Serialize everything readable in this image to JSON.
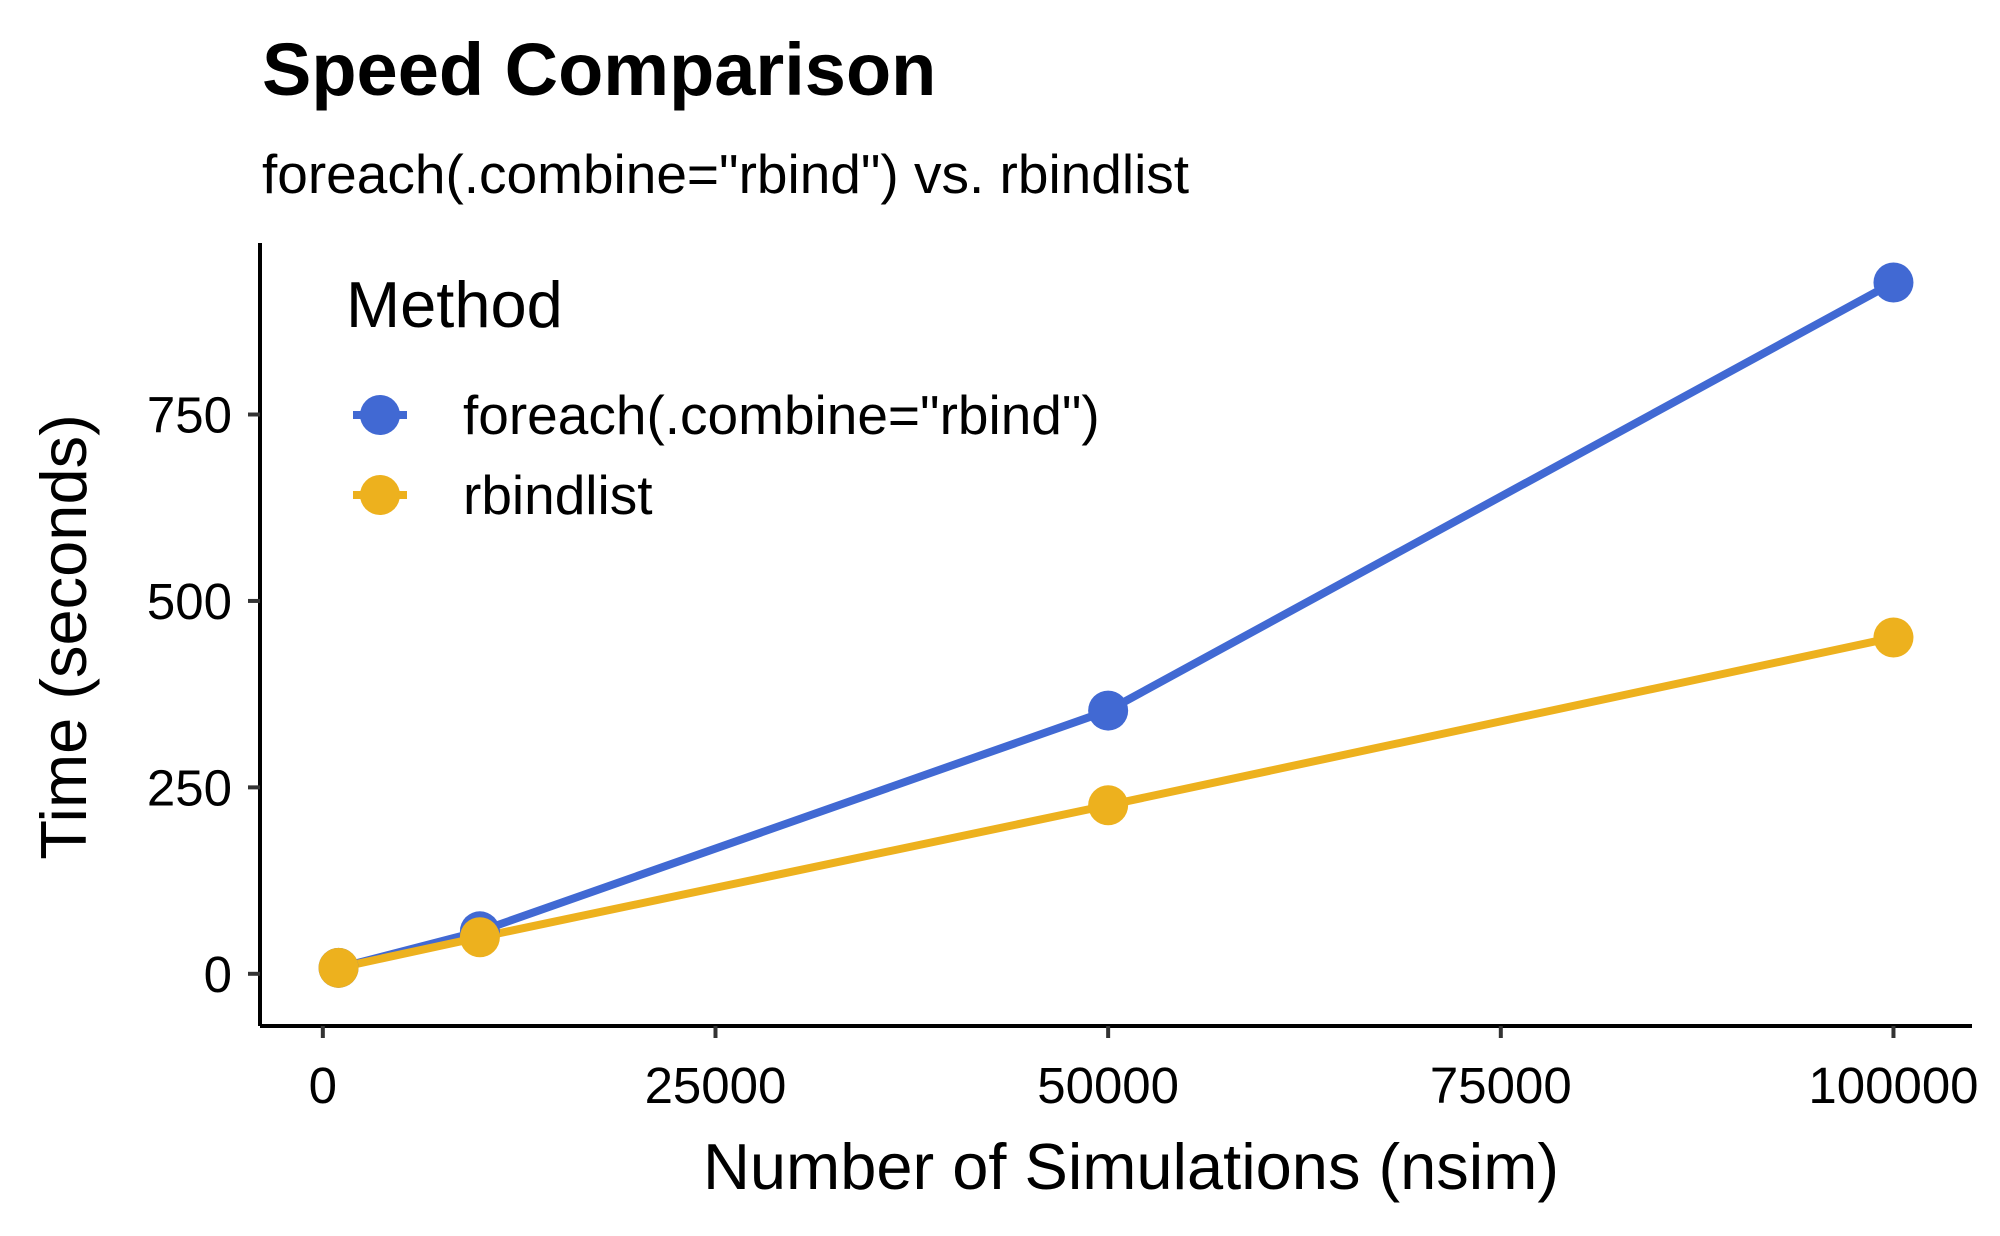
{
  "chart_data": {
    "type": "line",
    "title": "Speed Comparison",
    "subtitle": "foreach(.combine=\"rbind\") vs. rbindlist",
    "xlabel": "Number of Simulations (nsim)",
    "ylabel": "Time (seconds)",
    "xlim": [
      -4000,
      105000
    ],
    "ylim": [
      -70,
      980
    ],
    "x_ticks": [
      0,
      25000,
      50000,
      75000,
      100000
    ],
    "x_tick_labels": [
      "0",
      "25000",
      "50000",
      "75000",
      "100000"
    ],
    "y_ticks": [
      0,
      250,
      500,
      750
    ],
    "y_tick_labels": [
      "0",
      "250",
      "500",
      "750"
    ],
    "grid": false,
    "legend": {
      "title": "Method",
      "position": "top-left"
    },
    "series": [
      {
        "name": "foreach(.combine=\"rbind\")",
        "color": "#4169D3",
        "x": [
          1000,
          10000,
          50000,
          100000
        ],
        "y": [
          8,
          57,
          353,
          927
        ]
      },
      {
        "name": "rbindlist",
        "color": "#EDB11E",
        "x": [
          1000,
          10000,
          50000,
          100000
        ],
        "y": [
          8,
          49,
          226,
          451
        ]
      }
    ]
  }
}
